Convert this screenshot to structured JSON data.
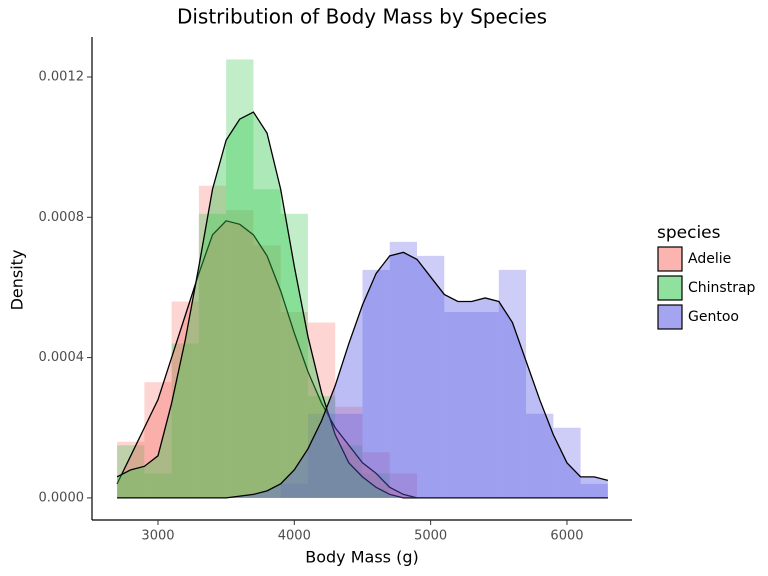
{
  "chart_data": {
    "type": "histogram-density",
    "title": "Distribution of Body Mass by Species",
    "x_label": "Body Mass (g)",
    "y_label": "Density",
    "legend_title": "species",
    "legend": "right",
    "grid": false,
    "xlim": [
      2516,
      6477
    ],
    "ylim": [
      -6.3e-05,
      0.001314
    ],
    "xticks": [
      3000,
      4000,
      5000,
      6000
    ],
    "yticks": [
      {
        "value": 0,
        "label": "0.0000"
      },
      {
        "value": 0.0004,
        "label": "0.0004"
      },
      {
        "value": 0.0008,
        "label": "0.0008"
      },
      {
        "value": 0.0012,
        "label": "0.0012"
      }
    ],
    "bins": [
      2700,
      2900,
      3100,
      3300,
      3500,
      3700,
      3900,
      4100,
      4300,
      4500,
      4700,
      4900,
      5100,
      5300,
      5500,
      5700,
      5900,
      6100,
      6300
    ],
    "density_x": [
      2700,
      2800,
      2900,
      3000,
      3100,
      3200,
      3300,
      3400,
      3500,
      3600,
      3700,
      3800,
      3900,
      4000,
      4100,
      4200,
      4300,
      4400,
      4500,
      4600,
      4700,
      4800,
      4900,
      5000,
      5100,
      5200,
      5300,
      5400,
      5500,
      5600,
      5700,
      5800,
      5900,
      6000,
      6100,
      6200,
      6300
    ],
    "series": [
      {
        "name": "Adelie",
        "color": "#F8766D",
        "values": [
          0.00016,
          0.00033,
          0.00056,
          0.00089,
          0.00082,
          0.00072,
          0.00053,
          0.0005,
          0.00026,
          0.00013,
          7e-05,
          0,
          0,
          0,
          0,
          0,
          0,
          0
        ],
        "density": [
          4e-05,
          0.00012,
          0.0002,
          0.00028,
          0.0004,
          0.00052,
          0.00064,
          0.00075,
          0.00079,
          0.00078,
          0.00075,
          0.00069,
          0.00059,
          0.00047,
          0.00036,
          0.00027,
          0.0002,
          0.00015,
          0.0001,
          7e-05,
          3e-05,
          1e-05,
          0,
          0,
          0,
          0,
          0,
          0,
          0,
          0,
          0,
          0,
          0,
          0,
          0,
          0,
          0
        ]
      },
      {
        "name": "Chinstrap",
        "color": "#33C84D",
        "values": [
          0.00015,
          7e-05,
          0.00044,
          0.00081,
          0.00125,
          0.00088,
          0.00081,
          0.00029,
          0.00015,
          7e-05,
          0,
          0,
          0,
          0,
          0,
          0,
          0,
          0
        ],
        "density": [
          6e-05,
          8e-05,
          9e-05,
          0.00012,
          0.00027,
          0.00045,
          0.00066,
          0.00088,
          0.00102,
          0.00108,
          0.0011,
          0.00104,
          0.00088,
          0.00066,
          0.00046,
          0.0003,
          0.00018,
          0.0001,
          6e-05,
          3e-05,
          1e-05,
          0,
          0,
          0,
          0,
          0,
          0,
          0,
          0,
          0,
          0,
          0,
          0,
          0,
          0,
          0,
          0
        ]
      },
      {
        "name": "Gentoo",
        "color": "#5A5AE6",
        "values": [
          0,
          0,
          0,
          0,
          0,
          0,
          4e-05,
          0.00024,
          0.00024,
          0.00065,
          0.00073,
          0.00069,
          0.00053,
          0.00053,
          0.00065,
          0.00024,
          0.0002,
          4e-05
        ],
        "density": [
          0,
          0,
          0,
          0,
          0,
          0,
          0,
          0,
          0,
          5e-06,
          1e-05,
          2e-05,
          4e-05,
          8e-05,
          0.00014,
          0.00022,
          0.00032,
          0.00044,
          0.00055,
          0.00064,
          0.00069,
          0.0007,
          0.00068,
          0.00063,
          0.00058,
          0.00056,
          0.00056,
          0.00057,
          0.00056,
          0.0005,
          0.00039,
          0.00028,
          0.00018,
          0.0001,
          6e-05,
          6e-05,
          5e-05
        ]
      }
    ]
  }
}
